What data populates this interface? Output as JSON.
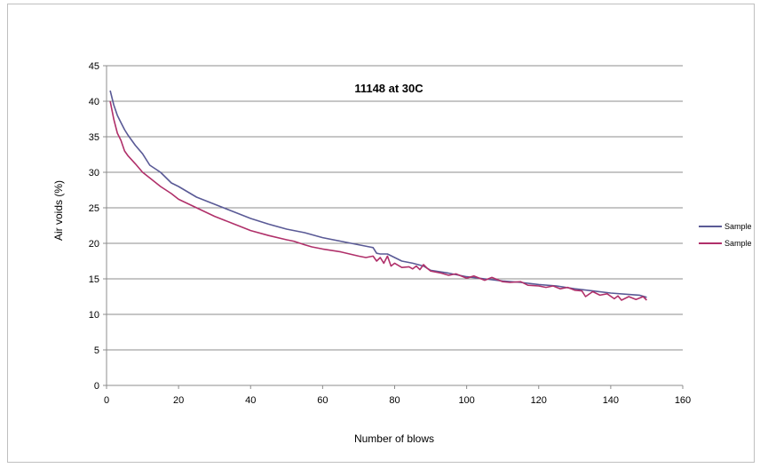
{
  "chart_data": {
    "type": "line",
    "title": "11148 at 30C",
    "xlabel": "Number of blows",
    "ylabel": "Air voids (%)",
    "xlim": [
      0,
      160
    ],
    "ylim": [
      0,
      45
    ],
    "x_ticks": [
      0,
      20,
      40,
      60,
      80,
      100,
      120,
      140,
      160
    ],
    "y_ticks": [
      0,
      5,
      10,
      15,
      20,
      25,
      30,
      35,
      40,
      45
    ],
    "grid": "horizontal",
    "legend_position": "right",
    "series": [
      {
        "name": "Sample",
        "color": "#5a5a96",
        "points": [
          [
            1,
            41.5
          ],
          [
            2,
            39.5
          ],
          [
            3,
            38
          ],
          [
            4,
            37
          ],
          [
            5,
            36
          ],
          [
            6,
            35.2
          ],
          [
            8,
            33.8
          ],
          [
            10,
            32.6
          ],
          [
            12,
            31
          ],
          [
            15,
            30
          ],
          [
            18,
            28.5
          ],
          [
            20,
            28
          ],
          [
            25,
            26.5
          ],
          [
            30,
            25.5
          ],
          [
            35,
            24.5
          ],
          [
            40,
            23.5
          ],
          [
            45,
            22.7
          ],
          [
            50,
            22
          ],
          [
            55,
            21.5
          ],
          [
            60,
            20.8
          ],
          [
            65,
            20.3
          ],
          [
            70,
            19.8
          ],
          [
            73,
            19.5
          ],
          [
            74,
            19.4
          ],
          [
            75,
            18.6
          ],
          [
            76,
            18.5
          ],
          [
            78,
            18.5
          ],
          [
            80,
            18
          ],
          [
            82,
            17.5
          ],
          [
            85,
            17.2
          ],
          [
            88,
            16.8
          ],
          [
            90,
            16.2
          ],
          [
            95,
            15.8
          ],
          [
            100,
            15.3
          ],
          [
            105,
            15
          ],
          [
            110,
            14.7
          ],
          [
            115,
            14.5
          ],
          [
            120,
            14.2
          ],
          [
            125,
            14
          ],
          [
            130,
            13.6
          ],
          [
            135,
            13.3
          ],
          [
            140,
            13
          ],
          [
            145,
            12.8
          ],
          [
            148,
            12.7
          ],
          [
            150,
            12.4
          ]
        ]
      },
      {
        "name": "Sample",
        "color": "#b0306a",
        "points": [
          [
            1,
            40
          ],
          [
            2,
            37.5
          ],
          [
            3,
            35.5
          ],
          [
            4,
            34.5
          ],
          [
            5,
            33
          ],
          [
            6,
            32.3
          ],
          [
            8,
            31.2
          ],
          [
            10,
            30
          ],
          [
            12,
            29.2
          ],
          [
            15,
            28
          ],
          [
            18,
            27
          ],
          [
            20,
            26.2
          ],
          [
            25,
            25
          ],
          [
            30,
            23.8
          ],
          [
            35,
            22.8
          ],
          [
            40,
            21.8
          ],
          [
            45,
            21.1
          ],
          [
            50,
            20.5
          ],
          [
            52,
            20.3
          ],
          [
            55,
            19.8
          ],
          [
            57,
            19.5
          ],
          [
            60,
            19.2
          ],
          [
            65,
            18.8
          ],
          [
            70,
            18.2
          ],
          [
            72,
            18
          ],
          [
            74,
            18.2
          ],
          [
            75,
            17.5
          ],
          [
            76,
            18
          ],
          [
            77,
            17.2
          ],
          [
            78,
            18.2
          ],
          [
            79,
            16.8
          ],
          [
            80,
            17.2
          ],
          [
            82,
            16.6
          ],
          [
            84,
            16.7
          ],
          [
            85,
            16.4
          ],
          [
            86,
            16.8
          ],
          [
            87,
            16.3
          ],
          [
            88,
            17
          ],
          [
            89,
            16.5
          ],
          [
            90,
            16.1
          ],
          [
            93,
            15.8
          ],
          [
            95,
            15.5
          ],
          [
            97,
            15.7
          ],
          [
            100,
            15.1
          ],
          [
            102,
            15.4
          ],
          [
            105,
            14.8
          ],
          [
            107,
            15.2
          ],
          [
            110,
            14.6
          ],
          [
            112,
            14.5
          ],
          [
            115,
            14.6
          ],
          [
            117,
            14.1
          ],
          [
            120,
            14
          ],
          [
            122,
            13.8
          ],
          [
            124,
            14
          ],
          [
            126,
            13.6
          ],
          [
            128,
            13.8
          ],
          [
            130,
            13.4
          ],
          [
            132,
            13.3
          ],
          [
            133,
            12.5
          ],
          [
            135,
            13.2
          ],
          [
            137,
            12.7
          ],
          [
            139,
            12.9
          ],
          [
            141,
            12.2
          ],
          [
            142,
            12.6
          ],
          [
            143,
            12
          ],
          [
            145,
            12.5
          ],
          [
            147,
            12.1
          ],
          [
            149,
            12.5
          ],
          [
            150,
            12
          ]
        ]
      }
    ]
  }
}
